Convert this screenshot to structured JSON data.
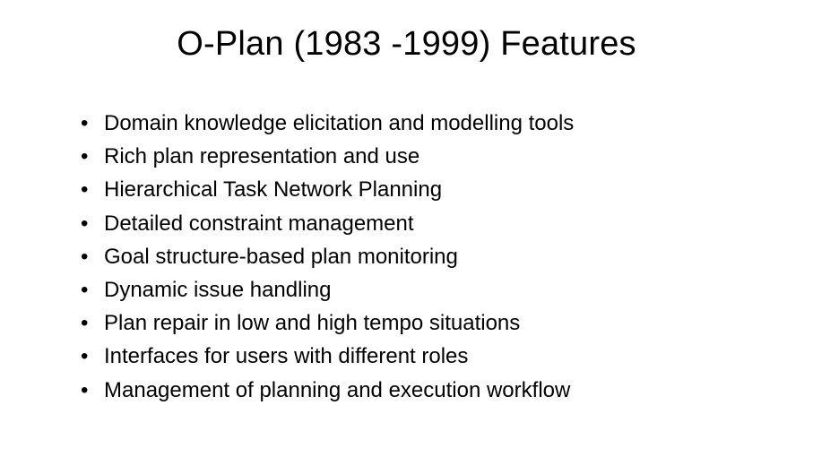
{
  "slide": {
    "title": "O-Plan (1983 -1999) Features",
    "title_fontsize": 38,
    "title_color": "#000000",
    "background_color": "#ffffff",
    "body_fontsize": 24,
    "body_color": "#000000",
    "bullets": [
      "Domain knowledge elicitation and modelling tools",
      "Rich plan representation and use",
      "Hierarchical Task Network Planning",
      "Detailed constraint management",
      "Goal structure-based plan monitoring",
      "Dynamic issue handling",
      "Plan repair in low and high tempo situations",
      "Interfaces for users with different roles",
      "Management of planning and execution workflow"
    ]
  }
}
